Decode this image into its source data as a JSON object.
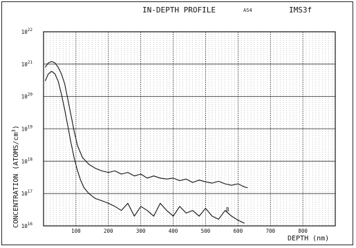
{
  "header": {
    "title": "IN-DEPTH PROFILE",
    "sample": "AS4",
    "instrument": "IMS3f"
  },
  "chart_data": {
    "type": "line",
    "title": "IN-DEPTH PROFILE",
    "xlabel": "DEPTH (nm)",
    "ylabel": "CONCENTRATION (ATOMS/cm3)",
    "xlim": [
      0,
      900
    ],
    "ylim": [
      1e+16,
      1e+22
    ],
    "yscale": "log",
    "grid": true,
    "x_ticks": [
      "100",
      "200",
      "300",
      "400",
      "500",
      "600",
      "700",
      "800"
    ],
    "y_ticks": [
      {
        "base": "10",
        "exp": "16"
      },
      {
        "base": "10",
        "exp": "17"
      },
      {
        "base": "10",
        "exp": "18"
      },
      {
        "base": "10",
        "exp": "19"
      },
      {
        "base": "10",
        "exp": "20"
      },
      {
        "base": "10",
        "exp": "21"
      },
      {
        "base": "10",
        "exp": "22"
      }
    ],
    "curve_label": "B",
    "series": [
      {
        "x": [
          5,
          15,
          25,
          35,
          45,
          55,
          65,
          75,
          85,
          95,
          105,
          120,
          140,
          160,
          180,
          200,
          220,
          240,
          260,
          280,
          300,
          320,
          340,
          360,
          380,
          400,
          420,
          440,
          460,
          480,
          500,
          520,
          540,
          560,
          580,
          600,
          620,
          630
        ],
        "y": [
          8e+20,
          1.1e+21,
          1.2e+21,
          1.1e+21,
          8e+20,
          5e+20,
          2.5e+20,
          8e+19,
          2.5e+19,
          8e+18,
          3e+18,
          1.3e+18,
          8e+17,
          6e+17,
          5e+17,
          4.5e+17,
          5e+17,
          4e+17,
          4.5e+17,
          3.5e+17,
          4e+17,
          3e+17,
          3.5e+17,
          3e+17,
          2.8e+17,
          3e+17,
          2.5e+17,
          2.8e+17,
          2.2e+17,
          2.6e+17,
          2.3e+17,
          2.1e+17,
          2.4e+17,
          2e+17,
          1.8e+17,
          2e+17,
          1.6e+17,
          1.5e+17
        ]
      },
      {
        "x": [
          5,
          15,
          25,
          35,
          45,
          55,
          65,
          75,
          85,
          95,
          105,
          115,
          125,
          140,
          160,
          180,
          200,
          220,
          240,
          260,
          280,
          300,
          320,
          340,
          360,
          380,
          400,
          420,
          440,
          460,
          480,
          500,
          520,
          540,
          560,
          580,
          600,
          620
        ],
        "y": [
          3e+20,
          5e+20,
          6e+20,
          5e+20,
          3e+20,
          1.2e+20,
          4e+19,
          1.2e+19,
          3.5e+18,
          1.2e+18,
          5e+17,
          2.5e+17,
          1.5e+17,
          1e+17,
          7e+16,
          6e+16,
          5e+16,
          4e+16,
          3e+16,
          5e+16,
          2e+16,
          4e+16,
          3e+16,
          2e+16,
          5e+16,
          3e+16,
          2e+16,
          4e+16,
          2.5e+16,
          3e+16,
          2e+16,
          3.5e+16,
          2e+16,
          1.6e+16,
          3e+16,
          2e+16,
          1.5e+16,
          1.2e+16
        ]
      }
    ]
  }
}
